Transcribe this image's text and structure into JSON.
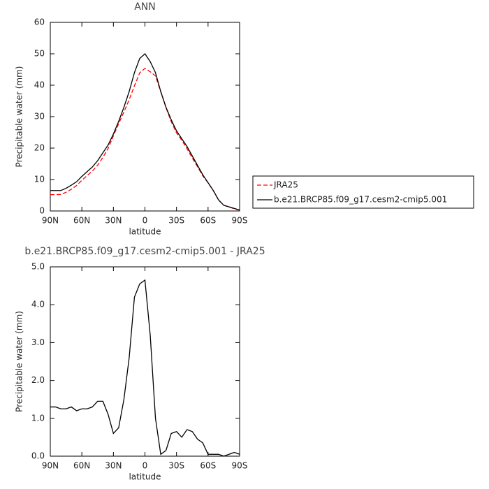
{
  "chart_data": [
    {
      "type": "line",
      "title": "ANN",
      "xlabel": "latitude",
      "ylabel": "Precipitable water (mm)",
      "x": [
        90,
        85,
        80,
        75,
        70,
        65,
        60,
        55,
        50,
        45,
        40,
        35,
        30,
        25,
        20,
        15,
        10,
        5,
        0,
        -5,
        -10,
        -15,
        -20,
        -25,
        -30,
        -35,
        -40,
        -45,
        -50,
        -55,
        -60,
        -65,
        -70,
        -75,
        -80,
        -85,
        -90
      ],
      "series": [
        {
          "name": "JRA25",
          "color": "#ff0000",
          "style": "dashed",
          "values": [
            5.2,
            5.2,
            5.25,
            5.95,
            6.9,
            8.1,
            9.75,
            11.25,
            12.7,
            14.55,
            17.05,
            19.9,
            23.9,
            27.75,
            31.5,
            35.4,
            39.8,
            43.95,
            45.35,
            44.3,
            43,
            37.95,
            32.85,
            28.4,
            24.85,
            22.5,
            19.8,
            16.85,
            14.05,
            11.15,
            8.95,
            6.45,
            3.45,
            1.8,
            1.25,
            0.7,
            0.25
          ]
        },
        {
          "name": "b.e21.BRCP85.f09_g17.cesm2-cmip5.001",
          "color": "#000000",
          "style": "solid",
          "values": [
            6.5,
            6.5,
            6.5,
            7.2,
            8.2,
            9.3,
            11,
            12.5,
            14,
            16,
            18.5,
            21,
            24.5,
            28.5,
            33,
            38,
            44,
            48.5,
            50,
            47.5,
            44,
            38,
            33,
            29,
            25.5,
            23,
            20.5,
            17.5,
            14.5,
            11.5,
            9,
            6.5,
            3.5,
            1.8,
            1.3,
            0.8,
            0.3
          ]
        }
      ],
      "xlim": [
        90,
        -90
      ],
      "xticks": [
        {
          "value": 90,
          "label": "90N"
        },
        {
          "value": 60,
          "label": "60N"
        },
        {
          "value": 30,
          "label": "30N"
        },
        0,
        {
          "value": -30,
          "label": "30S"
        },
        {
          "value": -60,
          "label": "60S"
        },
        {
          "value": -90,
          "label": "90S"
        }
      ],
      "ylim": [
        0,
        60
      ],
      "yticks": [
        0,
        10,
        20,
        30,
        40,
        50,
        60
      ],
      "legend": "right"
    },
    {
      "type": "line",
      "title": "b.e21.BRCP85.f09_g17.cesm2-cmip5.001 - JRA25",
      "xlabel": "latitude",
      "ylabel": "Precipitable water (mm)",
      "x": [
        90,
        85,
        80,
        75,
        70,
        65,
        60,
        55,
        50,
        45,
        40,
        35,
        30,
        25,
        20,
        15,
        10,
        5,
        0,
        -5,
        -10,
        -15,
        -20,
        -25,
        -30,
        -35,
        -40,
        -45,
        -50,
        -55,
        -60,
        -65,
        -70,
        -75,
        -80,
        -85,
        -90
      ],
      "series": [
        {
          "color": "#000000",
          "style": "solid",
          "values": [
            1.3,
            1.3,
            1.25,
            1.25,
            1.3,
            1.2,
            1.25,
            1.25,
            1.3,
            1.45,
            1.45,
            1.1,
            0.6,
            0.75,
            1.5,
            2.6,
            4.2,
            4.55,
            4.65,
            3.2,
            1.0,
            0.05,
            0.15,
            0.6,
            0.65,
            0.5,
            0.7,
            0.65,
            0.45,
            0.35,
            0.05,
            0.05,
            0.05,
            0,
            0.05,
            0.1,
            0.05
          ]
        }
      ],
      "xlim": [
        90,
        -90
      ],
      "xticks": [
        {
          "value": 90,
          "label": "90N"
        },
        {
          "value": 60,
          "label": "60N"
        },
        {
          "value": 30,
          "label": "30N"
        },
        0,
        {
          "value": -30,
          "label": "30S"
        },
        {
          "value": -60,
          "label": "60S"
        },
        {
          "value": -90,
          "label": "90S"
        }
      ],
      "ylim": [
        0,
        5
      ],
      "yticks": [
        {
          "value": 0,
          "label": "0.0"
        },
        {
          "value": 1,
          "label": "1.0"
        },
        {
          "value": 2,
          "label": "2.0"
        },
        {
          "value": 3,
          "label": "3.0"
        },
        {
          "value": 4,
          "label": "4.0"
        },
        {
          "value": 5,
          "label": "5.0"
        }
      ]
    }
  ]
}
